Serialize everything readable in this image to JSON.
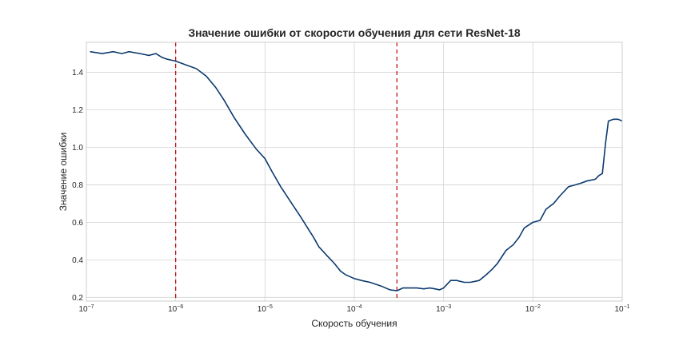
{
  "chart_data": {
    "type": "line",
    "title": "Значение ошибки от скорости обучения для сети ResNet-18",
    "xlabel": "Скорость обучения",
    "ylabel": "Значение ошибки",
    "xscale": "log",
    "xlim": [
      1e-07,
      0.1
    ],
    "ylim": [
      0.18,
      1.56
    ],
    "grid": true,
    "x_ticks": [
      {
        "base": "10",
        "exp": "−7"
      },
      {
        "base": "10",
        "exp": "−6"
      },
      {
        "base": "10",
        "exp": "−5"
      },
      {
        "base": "10",
        "exp": "−4"
      },
      {
        "base": "10",
        "exp": "−3"
      },
      {
        "base": "10",
        "exp": "−2"
      },
      {
        "base": "10",
        "exp": "−1"
      }
    ],
    "y_ticks": [
      "0.2",
      "0.4",
      "0.6",
      "0.8",
      "1.0",
      "1.2",
      "1.4"
    ],
    "y_tick_values": [
      0.2,
      0.4,
      0.6,
      0.8,
      1.0,
      1.2,
      1.4
    ],
    "series": [
      {
        "color": "#0b3a6e",
        "x": [
          1.1e-07,
          1.5e-07,
          2e-07,
          2.5e-07,
          3e-07,
          4e-07,
          5e-07,
          6e-07,
          7e-07,
          8e-07,
          1e-06,
          1.3e-06,
          1.7e-06,
          2.2e-06,
          2.8e-06,
          3.5e-06,
          4.5e-06,
          6e-06,
          8e-06,
          1e-05,
          1.2e-05,
          1.5e-05,
          2e-05,
          2.5e-05,
          3e-05,
          3.5e-05,
          4e-05,
          5e-05,
          6e-05,
          7e-05,
          8e-05,
          0.0001,
          0.00012,
          0.00015,
          0.0002,
          0.00025,
          0.0003,
          0.00035,
          0.0004,
          0.0005,
          0.0006,
          0.0007,
          0.0008,
          0.0009,
          0.001,
          0.0012,
          0.0014,
          0.0017,
          0.002,
          0.0025,
          0.003,
          0.0035,
          0.004,
          0.005,
          0.006,
          0.007,
          0.008,
          0.01,
          0.012,
          0.014,
          0.017,
          0.02,
          0.025,
          0.03,
          0.035,
          0.04,
          0.05,
          0.055,
          0.06,
          0.065,
          0.07,
          0.08,
          0.09,
          0.1
        ],
        "y": [
          1.51,
          1.5,
          1.51,
          1.5,
          1.51,
          1.5,
          1.49,
          1.5,
          1.48,
          1.47,
          1.46,
          1.44,
          1.42,
          1.38,
          1.32,
          1.25,
          1.16,
          1.07,
          0.99,
          0.94,
          0.87,
          0.79,
          0.7,
          0.63,
          0.57,
          0.52,
          0.47,
          0.42,
          0.38,
          0.34,
          0.32,
          0.3,
          0.29,
          0.28,
          0.26,
          0.24,
          0.235,
          0.25,
          0.25,
          0.25,
          0.245,
          0.25,
          0.245,
          0.24,
          0.25,
          0.29,
          0.29,
          0.28,
          0.28,
          0.29,
          0.32,
          0.35,
          0.38,
          0.45,
          0.48,
          0.52,
          0.57,
          0.6,
          0.61,
          0.67,
          0.7,
          0.74,
          0.79,
          0.8,
          0.81,
          0.82,
          0.83,
          0.85,
          0.86,
          1.02,
          1.14,
          1.15,
          1.15,
          1.14
        ]
      }
    ],
    "vlines": [
      {
        "x": 1e-06,
        "color": "#c00000",
        "style": "dashed"
      },
      {
        "x": 0.0003,
        "color": "#c00000",
        "style": "dashed"
      }
    ]
  }
}
